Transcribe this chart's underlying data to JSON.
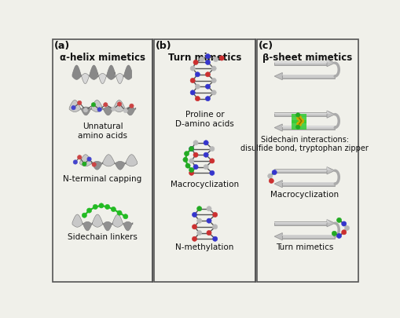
{
  "background_color": "#f0f0ea",
  "panel_bg": "#f0f0ea",
  "border_color": "#555555",
  "panel_labels": [
    "(a)",
    "(b)",
    "(c)"
  ],
  "panel_titles": [
    "α-helix mimetics",
    "Turn mimetics",
    "β-sheet mimetics"
  ],
  "col_a_labels": [
    "Unnatural\namino acids",
    "N-terminal capping",
    "Sidechain linkers"
  ],
  "col_b_labels": [
    "Proline or\nD-amino acids",
    "Macrocyclization",
    "N-methylation"
  ],
  "col_c_labels": [
    "Sidechain interactions:\ndisulfide bond, tryptophan zipper",
    "Macrocyclization",
    "Turn mimetics"
  ],
  "text_color": "#111111",
  "title_fontsize": 8.5,
  "label_fontsize": 7.5,
  "panel_label_fontsize": 9
}
